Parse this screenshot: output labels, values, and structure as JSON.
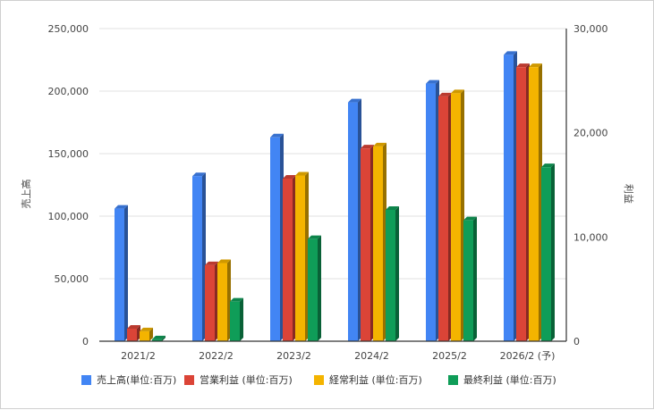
{
  "chart_data": {
    "type": "bar",
    "categories": [
      "2021/2",
      "2022/2",
      "2023/2",
      "2024/2",
      "2025/2",
      "2026/2 (予)"
    ],
    "series": [
      {
        "name": "売上高(単位:百万)",
        "axis": "left",
        "color": "#4285F4",
        "values": [
          106000,
          132000,
          163000,
          191000,
          206000,
          229000
        ]
      },
      {
        "name": "営業利益 (単位:百万)",
        "axis": "right",
        "color": "#DB4437",
        "values": [
          1200,
          7300,
          15600,
          18500,
          23500,
          26300
        ]
      },
      {
        "name": "経常利益 (単位:百万)",
        "axis": "right",
        "color": "#F4B400",
        "values": [
          950,
          7500,
          15900,
          18700,
          23800,
          26300
        ]
      },
      {
        "name": "最終利益 (単位:百万)",
        "axis": "right",
        "color": "#0F9D58",
        "values": [
          180,
          3800,
          9800,
          12600,
          11600,
          16700
        ]
      }
    ],
    "ylabel": "売上高",
    "ylabel_right": "利益",
    "ylim": [
      0,
      250000
    ],
    "ylim_right": [
      0,
      30000
    ],
    "yticks": [
      "0",
      "50,000",
      "100,000",
      "150,000",
      "200,000",
      "250,000"
    ],
    "yticks_right": [
      "0",
      "10,000",
      "20,000",
      "30,000"
    ],
    "grid": true,
    "legend_position": "bottom"
  }
}
